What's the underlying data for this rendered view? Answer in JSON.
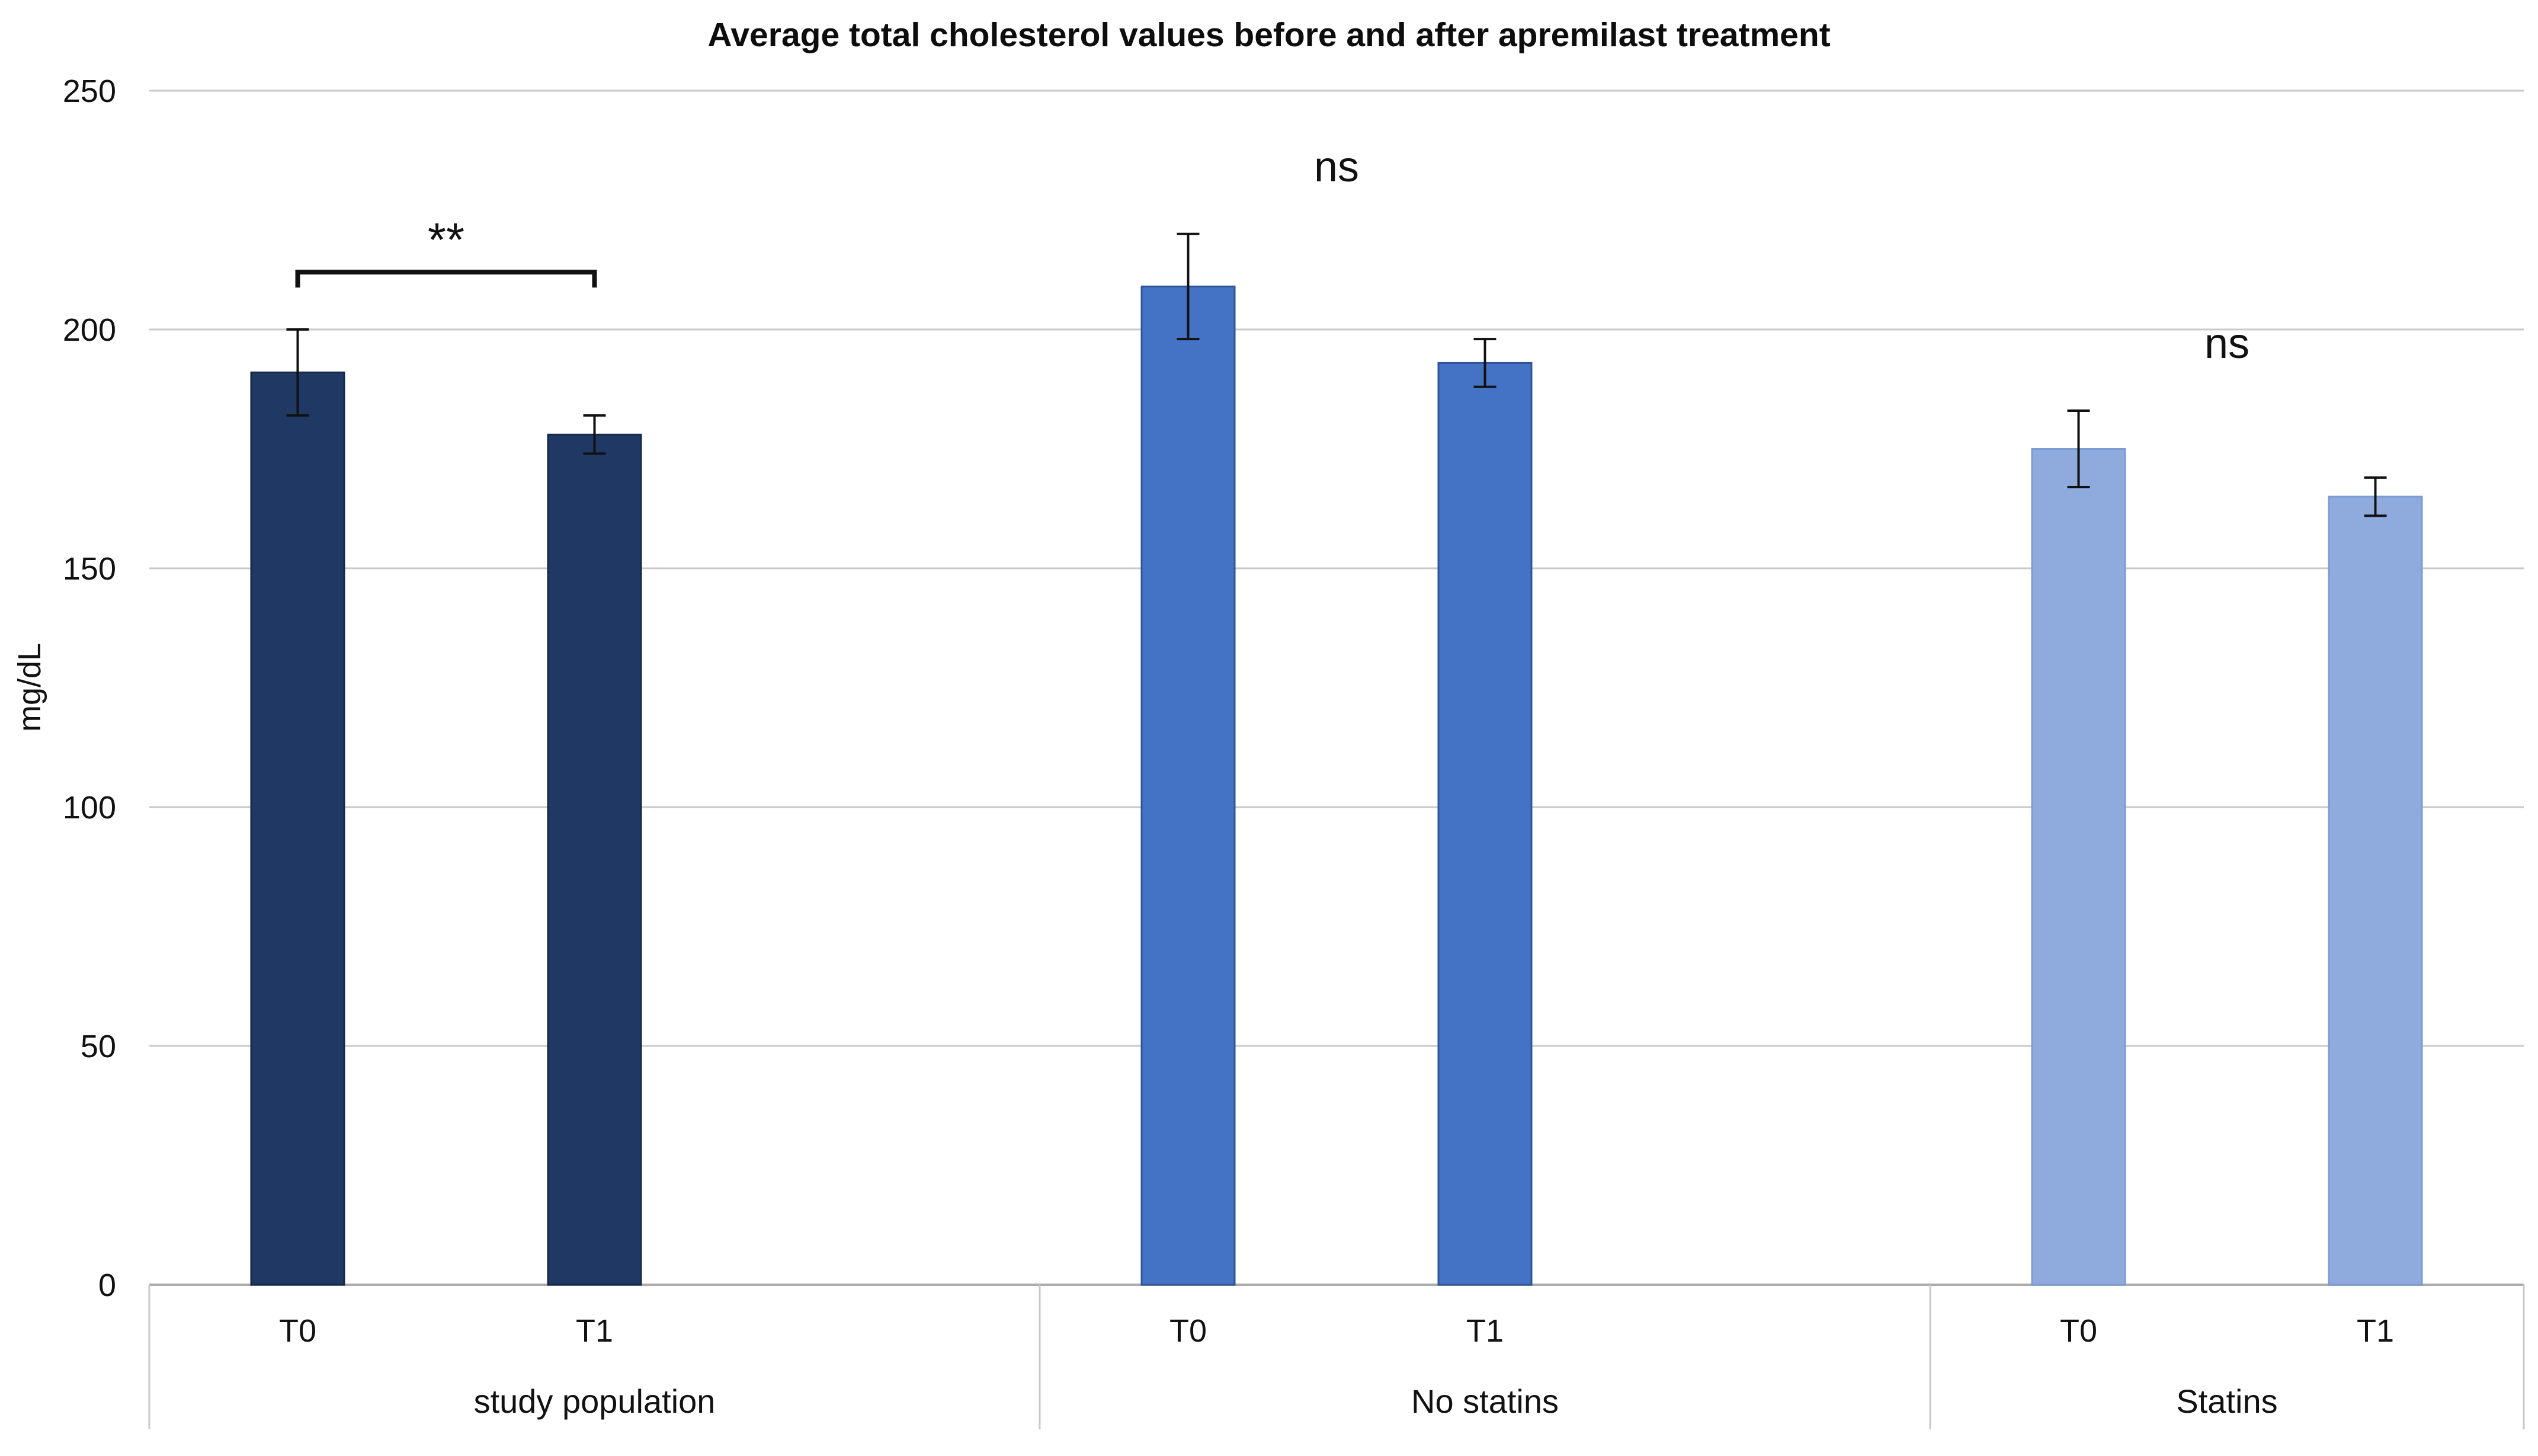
{
  "chart_data": {
    "type": "bar",
    "title": "Average total cholesterol values before and after apremilast treatment",
    "ylabel": "mg/dL",
    "xlabel": "",
    "ylim": [
      0,
      250
    ],
    "yticks": [
      0,
      50,
      100,
      150,
      200,
      250
    ],
    "grid": true,
    "legend": "none",
    "error_bars": true,
    "colors": {
      "grid": "#C9C9C9",
      "axis": "#ABABAB",
      "separator": "#C9C9C9",
      "text": "#111111",
      "error_bar": "#111111",
      "annotation": "#111111"
    },
    "groups": [
      {
        "label": "study population",
        "categories": [
          "T0",
          "T1"
        ],
        "values": [
          191,
          178
        ],
        "errors": [
          9,
          4
        ],
        "bar_color": "#1F3864",
        "bar_border": "#16294A",
        "significance": {
          "text": "**",
          "bracket": true,
          "bracket_y_value": 212,
          "label_y_value": 220
        }
      },
      {
        "label": "No statins",
        "categories": [
          "T0",
          "T1"
        ],
        "values": [
          209,
          193
        ],
        "errors": [
          11,
          5
        ],
        "bar_color": "#4472C4",
        "bar_border": "#2F5597",
        "significance": {
          "text": "ns",
          "bracket": false,
          "label_y_value": 234
        }
      },
      {
        "label": "Statins",
        "categories": [
          "T0",
          "T1"
        ],
        "values": [
          175,
          165
        ],
        "errors": [
          8,
          4
        ],
        "bar_color": "#8FAADC",
        "bar_border": "#7D9CD2",
        "significance": {
          "text": "ns",
          "bracket": false,
          "label_y_value": 197
        }
      }
    ]
  }
}
